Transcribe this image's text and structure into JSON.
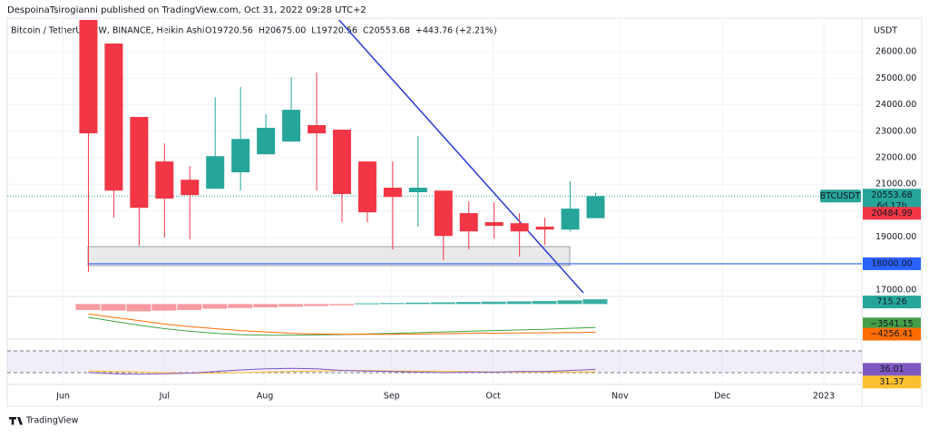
{
  "header": {
    "published": "DespoinaTsirogianni published on TradingView.com, Oct 31, 2022 09:28 UTC+2",
    "symbol": "Bitcoin / TetherUS, 1W, BINANCE, Heikin Ashi",
    "ohlc": [
      "O19720.56",
      "H20675.00",
      "L19720.56",
      "C20553.68",
      "+443.76 (+2.21%)"
    ]
  },
  "footer": {
    "brand": "TradingView"
  },
  "chart_data": {
    "type": "candlestick",
    "currency": "USDT",
    "open": [
      28000,
      26310,
      23540,
      21860,
      21170,
      20830,
      21450,
      22130,
      22610,
      23230,
      23060,
      21860,
      20870,
      20700,
      20760,
      19910,
      19570,
      19530,
      19400,
      19290,
      19720.56
    ],
    "high": [
      28000,
      26310,
      23540,
      22540,
      21690,
      24290,
      24670,
      23640,
      25040,
      25210,
      23060,
      21860,
      21860,
      22820,
      20760,
      20350,
      20320,
      19910,
      19740,
      21110,
      20675.0
    ],
    "low": [
      17684,
      19740,
      18680,
      18980,
      18920,
      20830,
      20760,
      22130,
      22610,
      20760,
      19570,
      19570,
      18540,
      19400,
      18130,
      18540,
      18950,
      18270,
      18710,
      19220,
      19720.56
    ],
    "close": [
      22920,
      20760,
      20110,
      20460,
      20590,
      22060,
      22710,
      23130,
      23810,
      22920,
      20630,
      19940,
      20520,
      20870,
      19050,
      19220,
      19430,
      19220,
      19290,
      20080,
      20553.68
    ],
    "up_color": "#26a69a",
    "down_color": "#f23645",
    "xlim": [
      -3.2,
      30.5
    ],
    "xticks": [
      {
        "value": -1,
        "label": "Jun"
      },
      {
        "value": 3,
        "label": "Jul"
      },
      {
        "value": 6.96,
        "label": "Aug"
      },
      {
        "value": 11.96,
        "label": "Sep"
      },
      {
        "value": 15.96,
        "label": "Oct"
      },
      {
        "value": 20.96,
        "label": "Nov"
      },
      {
        "value": 25,
        "label": "Dec"
      },
      {
        "value": 29,
        "label": "2023"
      }
    ],
    "ylim": [
      16800,
      27200
    ],
    "yticks": [
      {
        "value": 17000,
        "label": "17000.00"
      },
      {
        "value": 19000,
        "label": "19000.00"
      },
      {
        "value": 20000,
        "label": "20000.00"
      },
      {
        "value": 21000,
        "label": "21000.00"
      },
      {
        "value": 22000,
        "label": "22000.00"
      },
      {
        "value": 23000,
        "label": "23000.00"
      },
      {
        "value": 24000,
        "label": "24000.00"
      },
      {
        "value": 25000,
        "label": "25000.00"
      },
      {
        "value": 26000,
        "label": "26000.00"
      }
    ],
    "grid": true,
    "last_price": {
      "value": 20553.68,
      "label": "20553.68",
      "symbol": "BTCUSDT",
      "countdown": "6d 17h"
    },
    "close_price": {
      "value": 20484.99,
      "label": "20484.99"
    },
    "hline": {
      "value": 18000,
      "label": "18000.00",
      "color": "#2962ff"
    },
    "macd": {
      "ylim": [
        -5000,
        1000
      ],
      "histogram": [
        -900,
        -1000,
        -1100,
        -1000,
        -900,
        -700,
        -600,
        -500,
        -400,
        -300,
        -200,
        100,
        150,
        200,
        250,
        300,
        350,
        400,
        450,
        550,
        715.26
      ],
      "histogram_label": "715.26",
      "macd": [
        -2000,
        -2600,
        -3200,
        -3700,
        -4100,
        -4400,
        -4600,
        -4700,
        -4700,
        -4650,
        -4600,
        -4500,
        -4400,
        -4300,
        -4200,
        -4100,
        -4000,
        -3900,
        -3800,
        -3650,
        -3541.15
      ],
      "macd_label": "−3541.15",
      "macd_color": "#43a047",
      "signal": [
        -1500,
        -2000,
        -2500,
        -3000,
        -3400,
        -3700,
        -4000,
        -4200,
        -4400,
        -4500,
        -4550,
        -4550,
        -4550,
        -4500,
        -4450,
        -4400,
        -4380,
        -4350,
        -4320,
        -4290,
        -4256.41
      ],
      "signal_label": "−4256.41",
      "signal_color": "#ff6d00"
    },
    "rsi": {
      "ylim": [
        10,
        90
      ],
      "band": [
        30,
        70
      ],
      "values": [
        30,
        28,
        27,
        28,
        29,
        32,
        35,
        37,
        38,
        37,
        34,
        33,
        32,
        31,
        30,
        31,
        31,
        32,
        32,
        34,
        36.01
      ],
      "color": "#7e57c2",
      "ma_values": [
        33,
        32,
        31,
        30,
        29,
        29,
        30,
        31,
        32,
        33,
        34,
        34,
        33,
        33,
        32,
        32,
        31,
        31,
        31,
        31,
        31.37
      ],
      "ma_color": "#fbc02d"
    }
  }
}
